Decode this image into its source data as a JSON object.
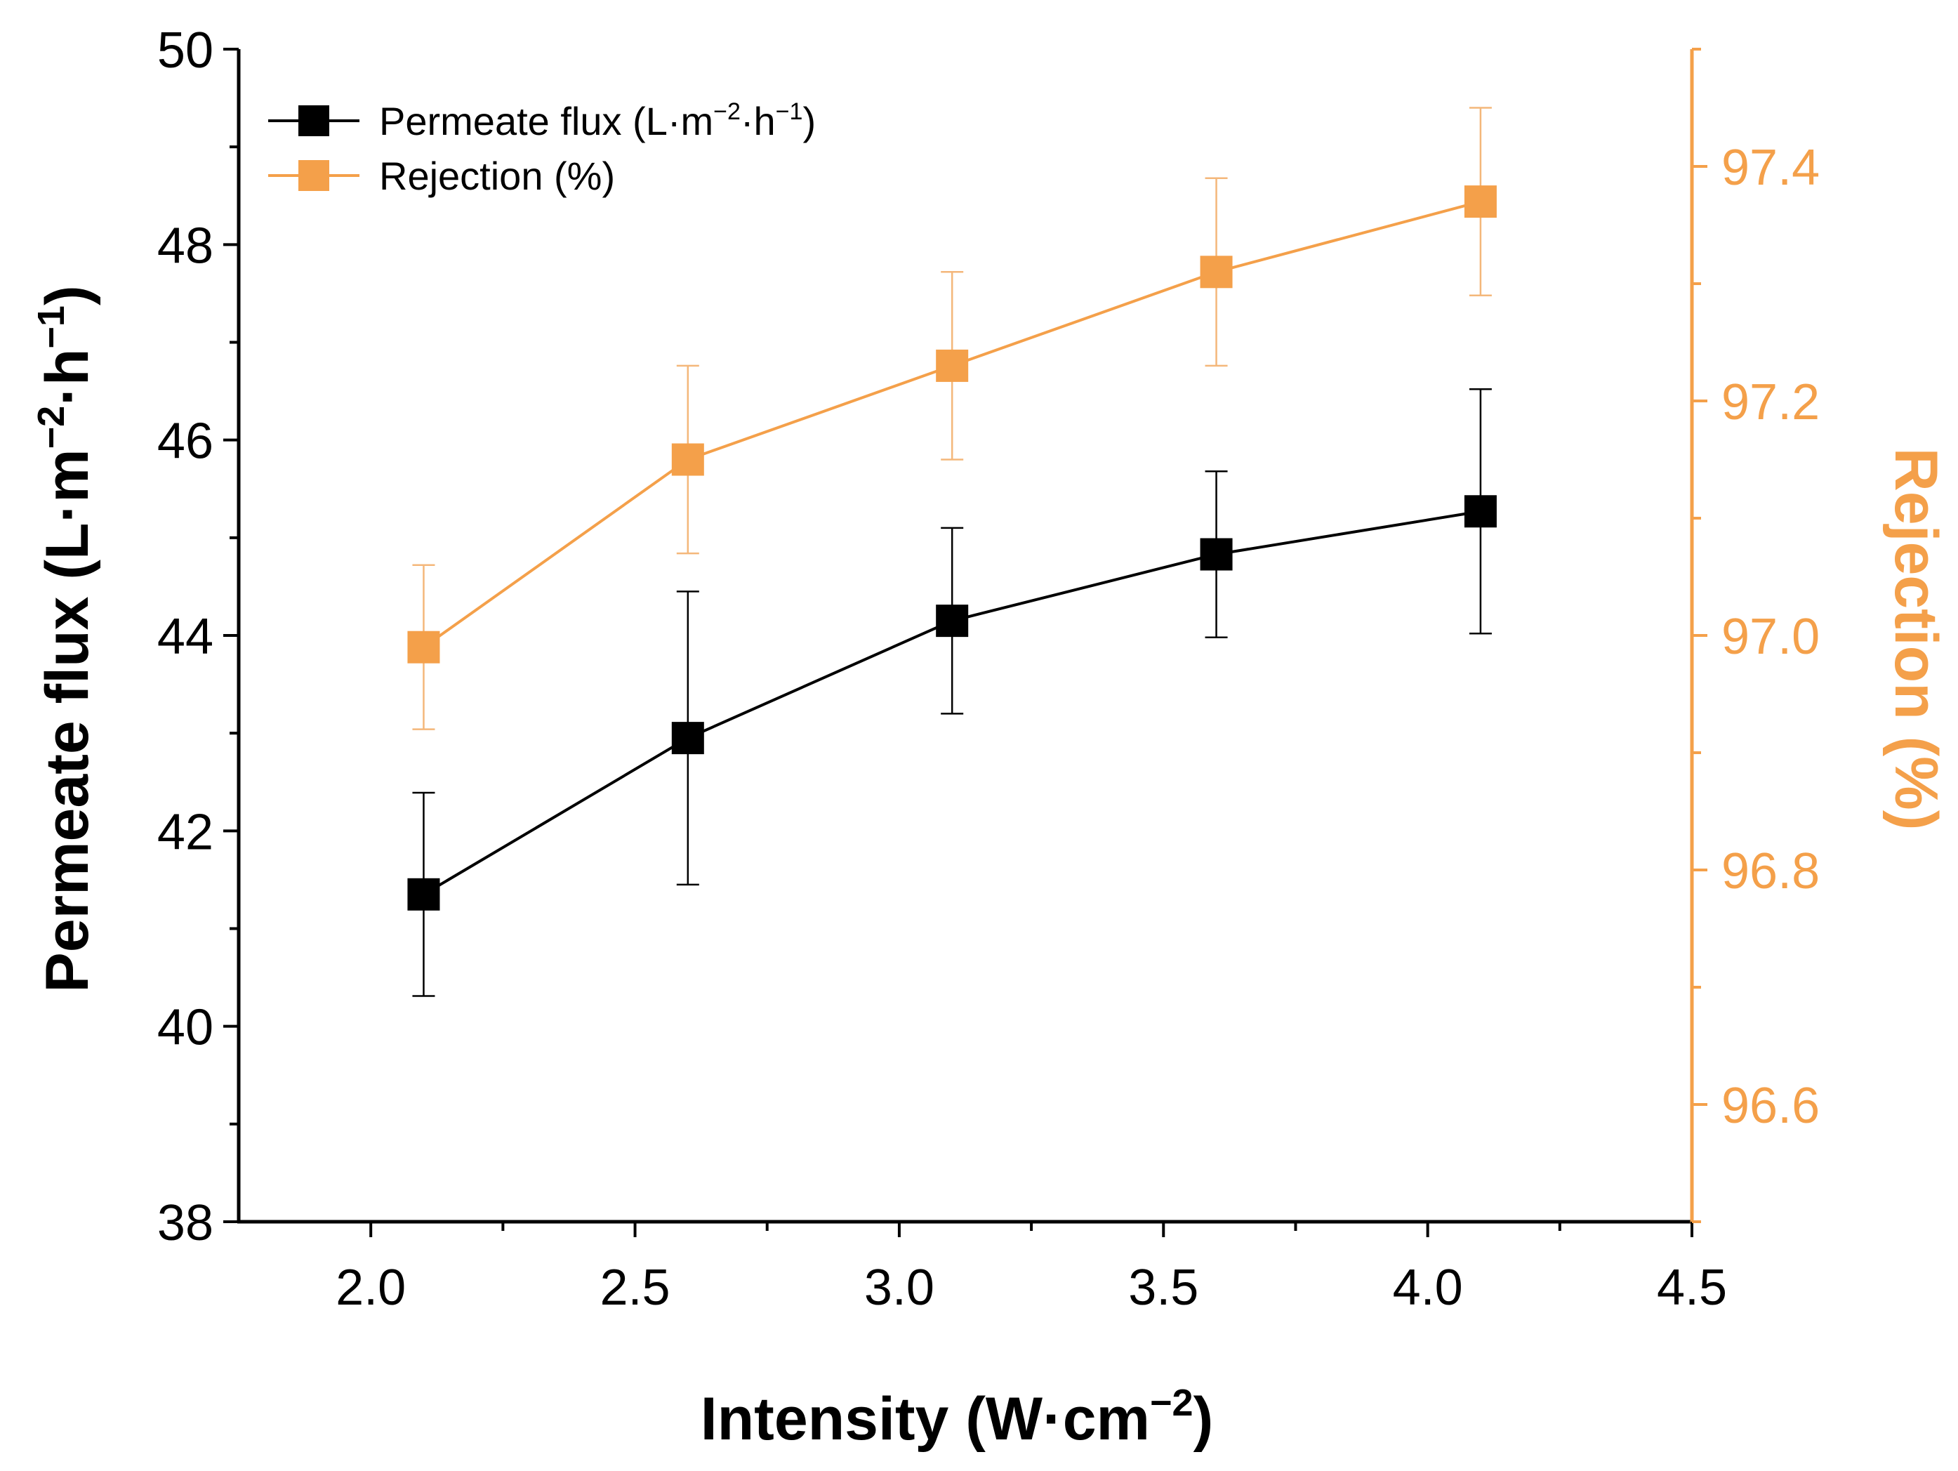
{
  "chart_data": {
    "type": "line",
    "xlabel": "Intensity (W·cm",
    "xlabel_sup": "−2",
    "xlabel_close": ")",
    "ylabel_left": "Permeate flux (L·m",
    "ylabel_left_sup1": "−2",
    "ylabel_left_mid": "·h",
    "ylabel_left_sup2": "−1",
    "ylabel_left_close": ")",
    "ylabel_right": "Rejection (%)",
    "xlim": [
      1.75,
      4.5
    ],
    "ylim_left": [
      38,
      50
    ],
    "ylim_right": [
      96.5,
      97.5
    ],
    "x_ticks": [
      "2.0",
      "2.5",
      "3.0",
      "3.5",
      "4.0",
      "4.5"
    ],
    "y_ticks_left": [
      "38",
      "40",
      "42",
      "44",
      "46",
      "48",
      "50"
    ],
    "y_ticks_right": [
      "96.6",
      "96.8",
      "97.0",
      "97.2",
      "97.4"
    ],
    "grid": false,
    "legend_position": "top-left",
    "series": [
      {
        "name": "Permeate flux (L·m",
        "name_sup1": "−2",
        "name_mid": "·h",
        "name_sup2": "−1",
        "name_close": ")",
        "axis": "left",
        "color": "#000000",
        "marker": "square",
        "x": [
          2.1,
          2.6,
          3.1,
          3.6,
          4.1
        ],
        "y": [
          41.35,
          42.95,
          44.15,
          44.83,
          45.27
        ],
        "error": [
          1.04,
          1.5,
          0.95,
          0.85,
          1.25
        ]
      },
      {
        "name": "Rejection (%)",
        "axis": "right",
        "color": "#F4A04A",
        "marker": "square",
        "x": [
          2.1,
          2.6,
          3.1,
          3.6,
          4.1
        ],
        "y": [
          96.99,
          97.15,
          97.23,
          97.31,
          97.37
        ],
        "error": [
          0.07,
          0.08,
          0.08,
          0.08,
          0.08
        ]
      }
    ]
  }
}
